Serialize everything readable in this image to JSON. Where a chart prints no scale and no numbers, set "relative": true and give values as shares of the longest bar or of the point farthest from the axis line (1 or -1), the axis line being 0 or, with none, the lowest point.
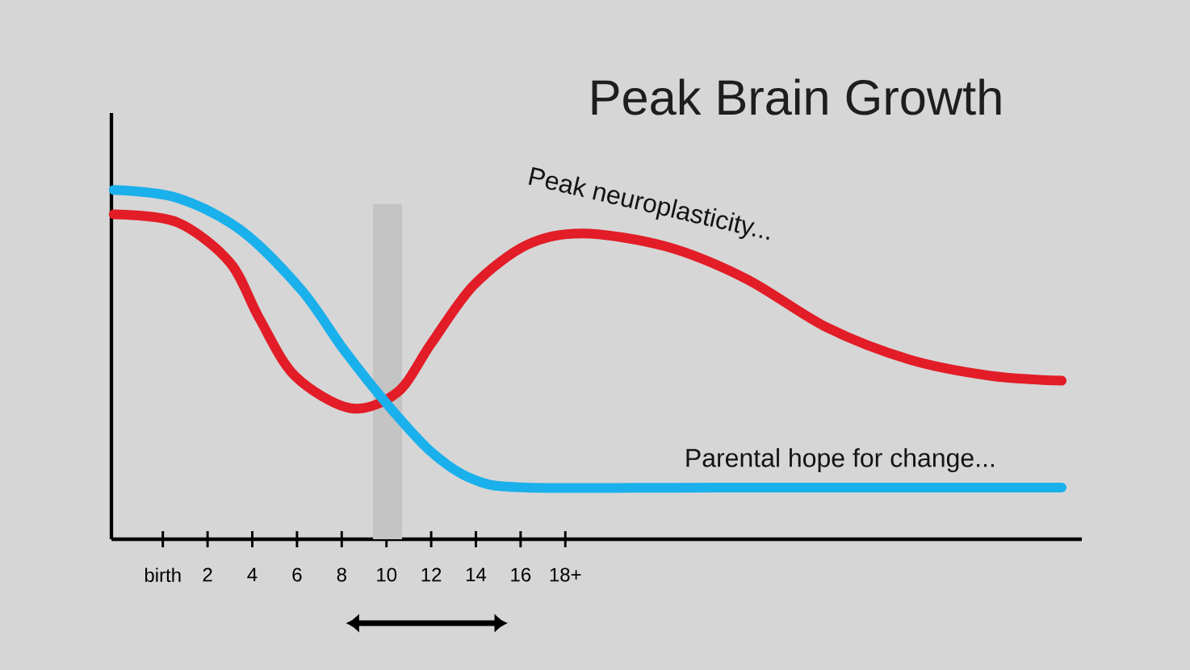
{
  "chart_data": {
    "type": "line",
    "title": "Peak Brain Growth",
    "relative": true,
    "marker": "none",
    "xlim": [
      -2.3,
      41.1
    ],
    "xticks": [
      {
        "value": 0,
        "label": "birth"
      },
      2,
      4,
      6,
      8,
      10,
      12,
      14,
      16,
      {
        "value": 18,
        "label": "18+"
      }
    ],
    "bands": [
      {
        "axis": "x",
        "from": 9.4,
        "to": 10.7,
        "color": "#c4c4c4"
      }
    ],
    "series": [
      {
        "name": "Peak neuroplasticity...",
        "color": "#e21d27",
        "x": [
          -2.2,
          0.65,
          3.0,
          4.3,
          5.9,
          8.4,
          10.5,
          12.0,
          13.9,
          16.3,
          18.8,
          22.5,
          26.1,
          29.7,
          33.4,
          37.0,
          40.2
        ],
        "values": [
          0.93,
          0.907,
          0.792,
          0.634,
          0.468,
          0.375,
          0.421,
          0.56,
          0.727,
          0.843,
          0.875,
          0.838,
          0.745,
          0.606,
          0.514,
          0.468,
          0.454
        ]
      },
      {
        "name": "Parental hope for change...",
        "color": "#1ab0ec",
        "x": [
          -2.2,
          0.65,
          3.5,
          6.2,
          8.1,
          10.0,
          12.0,
          13.9,
          16.3,
          25.0,
          40.2
        ],
        "values": [
          1.0,
          0.977,
          0.884,
          0.713,
          0.542,
          0.389,
          0.25,
          0.171,
          0.148,
          0.148,
          0.148
        ]
      }
    ]
  }
}
